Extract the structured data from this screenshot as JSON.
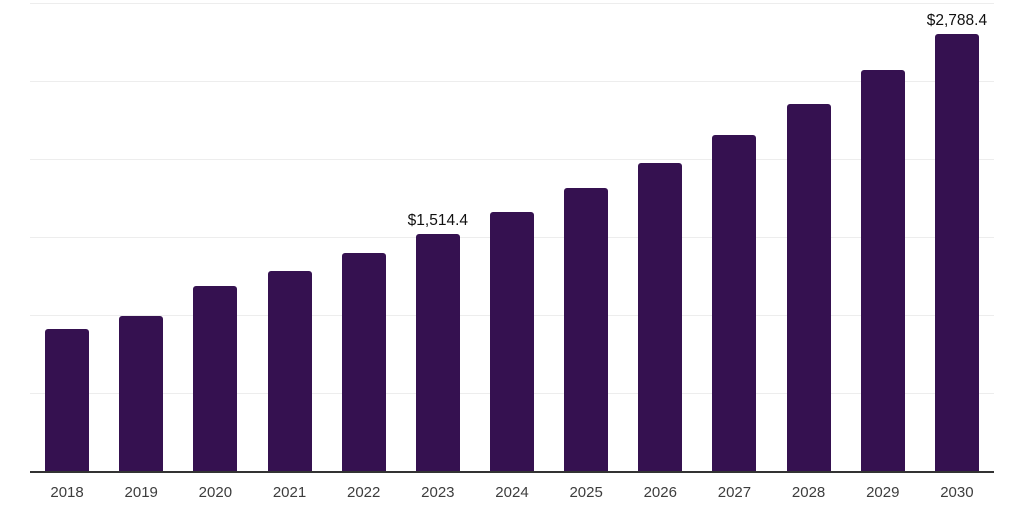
{
  "chart_data": {
    "type": "bar",
    "title": "",
    "xlabel": "",
    "ylabel": "",
    "categories": [
      "2018",
      "2019",
      "2020",
      "2021",
      "2022",
      "2023",
      "2024",
      "2025",
      "2026",
      "2027",
      "2028",
      "2029",
      "2030"
    ],
    "values": [
      905,
      988,
      1180,
      1278,
      1390,
      1514.4,
      1652.3,
      1802.8,
      1967.1,
      2146.3,
      2342.1,
      2555.8,
      2788.4
    ],
    "data_labels": [
      {
        "index": 5,
        "text": "$1,514.4"
      },
      {
        "index": 12,
        "text": "$2,788.4"
      }
    ],
    "ylim": [
      0,
      2985
    ],
    "grid": "horizontal",
    "gridline_count": 6,
    "legend": "none",
    "colors": {
      "bar": "#351150",
      "gridline": "#ededed",
      "axis_line": "#333333",
      "tick_label": "#3d3d3d",
      "value_label": "#111111",
      "background": "#ffffff"
    }
  }
}
